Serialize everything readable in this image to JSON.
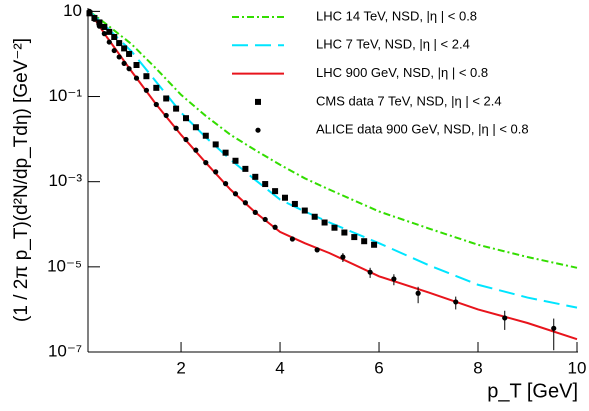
{
  "chart_data": {
    "type": "line",
    "x_label": "p_T [GeV]",
    "y_label": "(1 / 2π p_T)(d²N/dp_Tdη) [GeV⁻²]",
    "xlim": [
      0.12,
      10
    ],
    "ylim": [
      1e-07,
      12
    ],
    "xticks": [
      2,
      4,
      6,
      8,
      10
    ],
    "yticks": [
      {
        "value": 10,
        "label": "10"
      },
      {
        "value": 0.1,
        "label": "10⁻¹"
      },
      {
        "value": 0.001,
        "label": "10⁻³"
      },
      {
        "value": 1e-05,
        "label": "10⁻⁵"
      },
      {
        "value": 1e-07,
        "label": "10⁻⁷"
      }
    ],
    "y_log": true,
    "legend": "top-right",
    "series": [
      {
        "name": "LHC 14 TeV, NSD, |η | < 0.8",
        "color": "#33dd00",
        "style": "dash-dot",
        "x": [
          0.15,
          0.5,
          1,
          1.5,
          2,
          2.5,
          3,
          3.5,
          4,
          4.5,
          5,
          6,
          7,
          8,
          9,
          10
        ],
        "values": [
          10,
          4.9,
          1.7,
          0.45,
          0.11,
          0.035,
          0.0126,
          0.0055,
          0.0025,
          0.0012,
          0.00065,
          0.0002,
          8e-05,
          3.3e-05,
          1.7e-05,
          9.5e-06
        ]
      },
      {
        "name": "LHC 7 TeV, NSD, |η | < 2.4",
        "color": "#00e5ff",
        "style": "dash",
        "x": [
          0.15,
          0.5,
          1,
          1.5,
          2,
          2.5,
          3,
          3.5,
          4,
          4.5,
          5,
          6,
          7,
          8,
          9,
          10
        ],
        "values": [
          10,
          4.2,
          1.15,
          0.22,
          0.042,
          0.011,
          0.0033,
          0.0011,
          0.00038,
          0.0002,
          0.00011,
          3.6e-05,
          1.1e-05,
          3.8e-06,
          1.9e-06,
          1.1e-06
        ]
      },
      {
        "name": "LHC 900 GeV, NSD, |η | < 0.8",
        "color": "#e8141c",
        "style": "solid",
        "x": [
          0.15,
          0.5,
          1,
          1.5,
          2,
          2.5,
          3,
          3.5,
          4,
          4.5,
          5,
          6,
          7,
          8,
          9,
          10
        ],
        "values": [
          10,
          2.5,
          0.39,
          0.065,
          0.0126,
          0.0028,
          0.00065,
          0.00019,
          6.6e-05,
          3.6e-05,
          2.1e-05,
          6e-06,
          2.5e-06,
          1e-06,
          4.8e-07,
          2e-07
        ]
      },
      {
        "name": "CMS data 7 TeV, NSD, |η | < 2.4",
        "color": "#000000",
        "style": "square",
        "x": [
          0.15,
          0.25,
          0.35,
          0.45,
          0.55,
          0.65,
          0.75,
          0.85,
          0.95,
          1.1,
          1.3,
          1.5,
          1.7,
          1.9,
          2.1,
          2.3,
          2.5,
          2.7,
          2.9,
          3.1,
          3.3,
          3.5,
          3.7,
          3.9,
          4.1,
          4.3,
          4.5,
          4.7,
          4.9,
          5.1,
          5.3,
          5.5,
          5.7,
          5.9
        ],
        "values": [
          9,
          7,
          5.5,
          4.3,
          3.3,
          2.5,
          1.8,
          1.35,
          1.0,
          0.55,
          0.3,
          0.16,
          0.09,
          0.052,
          0.031,
          0.019,
          0.012,
          0.0075,
          0.0048,
          0.0031,
          0.002,
          0.0013,
          0.00088,
          0.0006,
          0.00042,
          0.0003,
          0.00021,
          0.00015,
          0.00011,
          8.3e-05,
          6.4e-05,
          5e-05,
          4e-05,
          3.3e-05
        ]
      },
      {
        "name": "ALICE data 900 GeV, NSD, |η | < 0.8",
        "color": "#000000",
        "style": "circle",
        "x": [
          0.15,
          0.25,
          0.35,
          0.45,
          0.55,
          0.65,
          0.75,
          0.85,
          0.95,
          1.1,
          1.3,
          1.5,
          1.7,
          1.9,
          2.1,
          2.3,
          2.5,
          2.7,
          2.9,
          3.1,
          3.3,
          3.5,
          3.7,
          3.9,
          4.25,
          4.75,
          5.27,
          5.82,
          6.3,
          6.79,
          7.55,
          8.54,
          9.53
        ],
        "values": [
          10,
          6.5,
          4.5,
          3.0,
          1.9,
          1.2,
          0.85,
          0.6,
          0.45,
          0.27,
          0.14,
          0.065,
          0.036,
          0.018,
          0.0098,
          0.0055,
          0.0028,
          0.0017,
          0.0009,
          0.00052,
          0.00032,
          0.00019,
          0.00013,
          8.5e-05,
          4.5e-05,
          2.5e-05,
          1.7e-05,
          7.5e-06,
          5.2e-06,
          2.4e-06,
          1.5e-06,
          6.3e-07,
          3.6e-07
        ],
        "errors": [
          null,
          null,
          null,
          null,
          null,
          null,
          null,
          null,
          null,
          null,
          null,
          null,
          null,
          null,
          null,
          null,
          null,
          null,
          null,
          null,
          null,
          null,
          null,
          null,
          null,
          null,
          4e-06,
          2e-06,
          1.5e-06,
          1e-06,
          5e-07,
          3e-07,
          2.5e-07
        ]
      }
    ]
  }
}
